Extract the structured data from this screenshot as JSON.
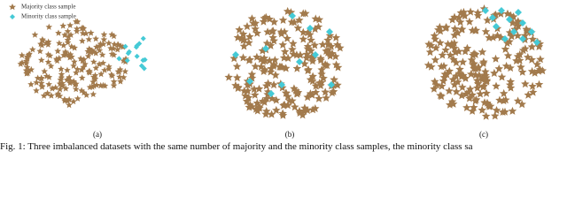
{
  "legend": {
    "majority": "Majority class sample",
    "minority": "Minority class sample"
  },
  "panels": [
    {
      "label": "(a)"
    },
    {
      "label": "(b)"
    },
    {
      "label": "(c)"
    }
  ],
  "caption": "Fig. 1: Three imbalanced datasets with the same number of majority and the minority class samples, the minority class sa"
}
